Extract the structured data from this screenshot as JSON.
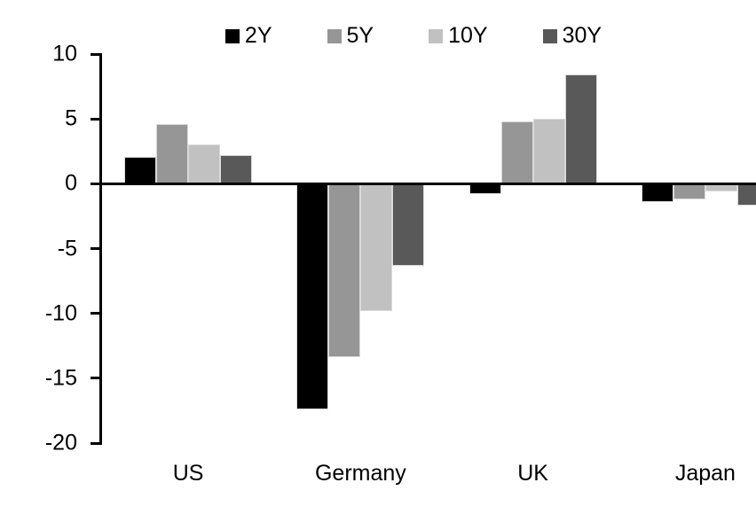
{
  "chart_data": {
    "type": "bar",
    "title": "",
    "categories": [
      "US",
      "Germany",
      "UK",
      "Japan"
    ],
    "series": [
      {
        "name": "2Y",
        "color": "#000000",
        "values": [
          2.1,
          -17.4,
          -0.8,
          -1.4
        ]
      },
      {
        "name": "5Y",
        "color": "#969696",
        "values": [
          4.6,
          -13.4,
          4.8,
          -1.2
        ]
      },
      {
        "name": "10Y",
        "color": "#c1c1c1",
        "values": [
          3.0,
          -9.8,
          5.0,
          -0.6
        ]
      },
      {
        "name": "30Y",
        "color": "#595959",
        "values": [
          2.2,
          -6.3,
          8.4,
          -1.7
        ]
      }
    ],
    "ylim": [
      -20,
      10
    ],
    "yticks": [
      10,
      5,
      0,
      -5,
      -10,
      -15,
      -20
    ],
    "xlabel": "",
    "ylabel": "",
    "grid": false,
    "legend_position": "top-center",
    "axis_color": "#000000",
    "background_color": "#ffffff"
  }
}
